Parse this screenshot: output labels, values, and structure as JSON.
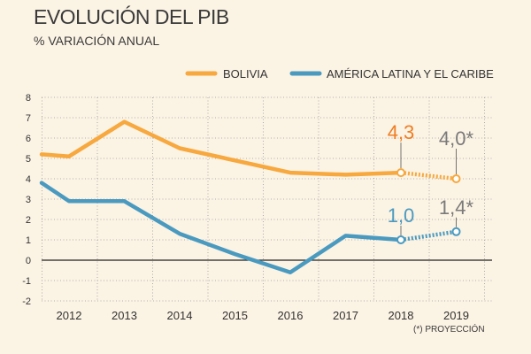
{
  "header": {
    "title": "EVOLUCIÓN DEL PIB",
    "subtitle": "% VARIACIÓN ANUAL"
  },
  "footnote": "(*) PROYECCIÓN",
  "colors": {
    "bolivia": "#f7a83e",
    "bolivia_label": "#ef7d22",
    "latam": "#4a9ac0",
    "annotation_gray": "#7a7a7a",
    "grid": "#9a9a9a",
    "zero_line": "#222222"
  },
  "chart_data": {
    "type": "line",
    "title": "EVOLUCIÓN DEL PIB",
    "ylabel": "% VARIACIÓN ANUAL",
    "xlabel": "",
    "ylim": [
      -2,
      8
    ],
    "yticks": [
      "8",
      "7",
      "6",
      "5",
      "4",
      "3",
      "2",
      "1",
      "0",
      "-1",
      "-2"
    ],
    "categories": [
      "2012",
      "2013",
      "2014",
      "2015",
      "2016",
      "2017",
      "2018",
      "2019"
    ],
    "series": [
      {
        "name": "BOLIVIA",
        "x": [
          2011.75,
          2012,
          2013,
          2014,
          2015,
          2016,
          2017,
          2018,
          2019
        ],
        "values": [
          5.2,
          5.1,
          6.8,
          5.5,
          4.9,
          4.3,
          4.2,
          4.3,
          4.0
        ],
        "projected_from_index": 7
      },
      {
        "name": "AMÉRICA LATINA Y EL CARIBE",
        "x": [
          2011.75,
          2012,
          2013,
          2014,
          2015,
          2016,
          2017,
          2018,
          2019
        ],
        "values": [
          3.8,
          2.9,
          2.9,
          1.3,
          0.3,
          -0.6,
          1.2,
          1.0,
          1.4
        ],
        "projected_from_index": 7
      }
    ],
    "annotations": [
      {
        "label": "4,3",
        "series": 0,
        "x": 2018,
        "value": 4.3
      },
      {
        "label": "4,0*",
        "series": 0,
        "x": 2019,
        "value": 4.0
      },
      {
        "label": "1,0",
        "series": 1,
        "x": 2018,
        "value": 1.0
      },
      {
        "label": "1,4*",
        "series": 1,
        "x": 2019,
        "value": 1.4
      }
    ],
    "legend": [
      "BOLIVIA",
      "AMÉRICA LATINA Y EL CARIBE"
    ],
    "legend_position": "top"
  }
}
